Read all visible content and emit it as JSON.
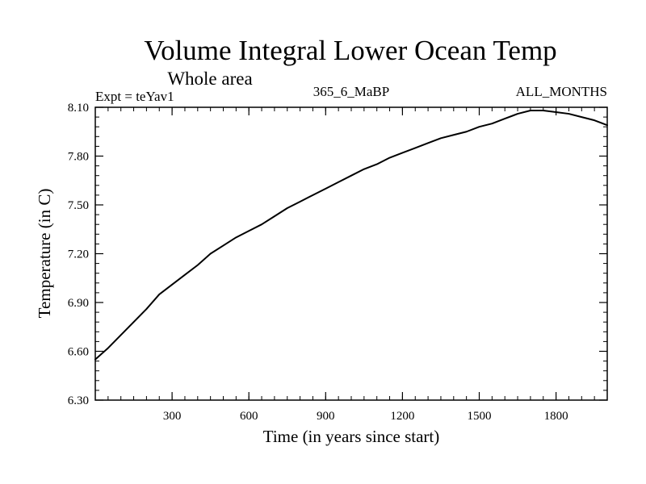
{
  "chart_data": {
    "type": "line",
    "title": "Volume Integral Lower Ocean Temp",
    "subtitle": "Whole area",
    "expt_label": "Expt = teYav1",
    "center_label": "365_6_MaBP",
    "right_label": "ALL_MONTHS",
    "xlabel": "Time (in years since start)",
    "ylabel": "Temperature (in C)",
    "xlim": [
      0,
      2000
    ],
    "ylim": [
      6.3,
      8.1
    ],
    "xticks": [
      300,
      600,
      900,
      1200,
      1500,
      1800
    ],
    "xtick_labels": [
      "300",
      "600",
      "900",
      "1200",
      "1500",
      "1800"
    ],
    "yticks": [
      6.3,
      6.6,
      6.9,
      7.2,
      7.5,
      7.8,
      8.1
    ],
    "ytick_labels": [
      "6.30",
      "6.60",
      "6.90",
      "7.20",
      "7.50",
      "7.80",
      "8.10"
    ],
    "grid": false,
    "series": [
      {
        "name": "Volume Integral Lower Ocean Temp",
        "color": "#000000",
        "x": [
          0,
          50,
          100,
          150,
          200,
          250,
          300,
          350,
          400,
          450,
          500,
          550,
          600,
          650,
          700,
          750,
          800,
          850,
          900,
          950,
          1000,
          1050,
          1100,
          1150,
          1200,
          1250,
          1300,
          1350,
          1400,
          1450,
          1500,
          1550,
          1600,
          1650,
          1700,
          1750,
          1800,
          1850,
          1900,
          1950,
          2000
        ],
        "y": [
          6.55,
          6.62,
          6.7,
          6.78,
          6.86,
          6.95,
          7.01,
          7.07,
          7.13,
          7.2,
          7.25,
          7.3,
          7.34,
          7.38,
          7.43,
          7.48,
          7.52,
          7.56,
          7.6,
          7.64,
          7.68,
          7.72,
          7.75,
          7.79,
          7.82,
          7.85,
          7.88,
          7.91,
          7.93,
          7.95,
          7.98,
          8.0,
          8.03,
          8.06,
          8.08,
          8.08,
          8.07,
          8.06,
          8.04,
          8.02,
          7.99
        ]
      }
    ]
  }
}
